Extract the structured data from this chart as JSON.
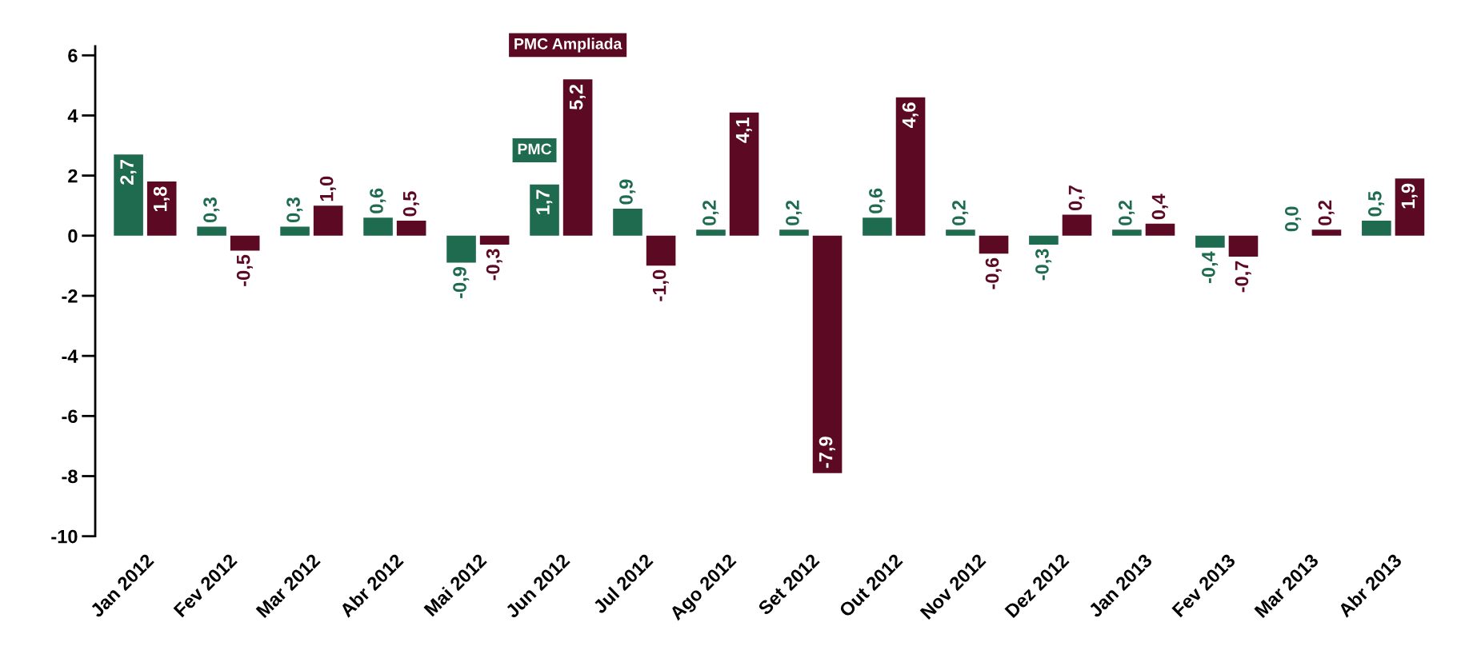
{
  "chart_data": {
    "type": "bar",
    "categories": [
      "Jan 2012",
      "Fev 2012",
      "Mar 2012",
      "Abr 2012",
      "Mai 2012",
      "Jun 2012",
      "Jul 2012",
      "Ago 2012",
      "Set 2012",
      "Out 2012",
      "Nov 2012",
      "Dez 2012",
      "Jan 2013",
      "Fev 2013",
      "Mar 2013",
      "Abr 2013"
    ],
    "series": [
      {
        "name": "PMC",
        "color": "#1e6b4f",
        "values": [
          2.7,
          0.3,
          0.3,
          0.6,
          -0.9,
          1.7,
          0.9,
          0.2,
          0.2,
          0.6,
          0.2,
          -0.3,
          0.2,
          -0.4,
          0.0,
          0.5
        ],
        "value_labels": [
          "2,7",
          "0,3",
          "0,3",
          "0,6",
          "-0,9",
          "1,7",
          "0,9",
          "0,2",
          "0,2",
          "0,6",
          "0,2",
          "-0,3",
          "0,2",
          "-0,4",
          "0,0",
          "0,5"
        ]
      },
      {
        "name": "PMC Ampliada",
        "color": "#5c0a24",
        "values": [
          1.8,
          -0.5,
          1.0,
          0.5,
          -0.3,
          5.2,
          -1.0,
          4.1,
          -7.9,
          4.6,
          -0.6,
          0.7,
          0.4,
          -0.7,
          0.2,
          1.9
        ],
        "value_labels": [
          "1,8",
          "-0,5",
          "1,0",
          "0,5",
          "-0,3",
          "5,2",
          "-1,0",
          "4,1",
          "-7,9",
          "4,6",
          "-0,6",
          "0,7",
          "0,4",
          "-0,7",
          "0,2",
          "1,9"
        ]
      }
    ],
    "ylim": [
      -10,
      6.3
    ],
    "yticks": [
      -10,
      -8,
      -6,
      -4,
      -2,
      0,
      2,
      4,
      6
    ],
    "grid": false,
    "legend": false
  }
}
